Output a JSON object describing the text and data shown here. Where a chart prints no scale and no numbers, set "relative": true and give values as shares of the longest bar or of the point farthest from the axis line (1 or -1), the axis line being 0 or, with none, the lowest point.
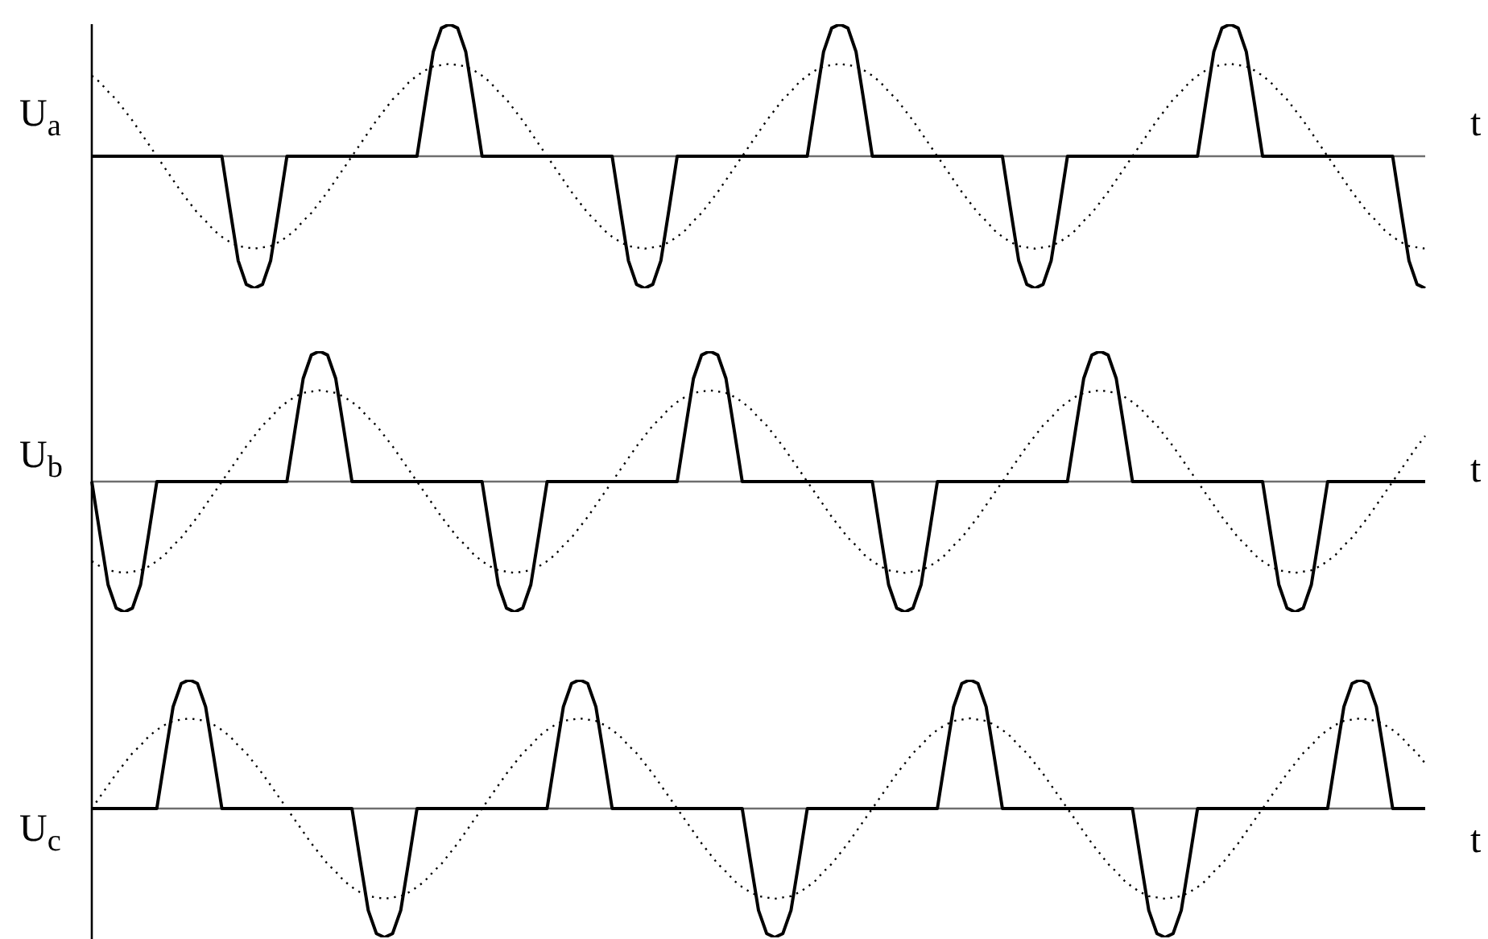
{
  "chart_data": [
    {
      "type": "line",
      "relative": true,
      "ylabel": "U$_{a}$",
      "xlabel": "t",
      "categories": [
        null,
        null,
        null,
        null,
        null,
        null,
        null,
        null,
        null,
        null,
        null,
        null,
        null,
        null,
        null,
        null,
        null,
        null,
        null,
        null,
        null,
        null,
        null,
        null,
        null,
        null,
        null,
        null,
        null,
        null,
        null,
        null,
        null,
        null,
        null,
        null,
        null,
        null,
        null,
        null,
        null,
        null,
        null,
        null,
        null,
        null,
        null,
        null,
        null,
        null,
        null,
        null,
        null,
        null,
        null,
        null,
        null,
        null,
        null,
        null,
        null,
        null,
        null,
        null,
        null,
        null,
        null,
        null,
        null,
        null,
        null,
        null,
        null,
        null,
        null,
        null,
        null,
        null,
        null,
        null,
        null,
        null,
        null,
        null,
        null,
        null,
        null,
        null,
        null,
        null,
        null,
        null,
        null,
        null,
        null,
        null,
        null,
        null,
        null,
        null,
        null,
        null,
        null,
        null,
        null,
        null,
        null,
        null,
        null,
        null,
        null,
        null,
        null,
        null,
        null,
        null,
        null,
        null,
        null,
        null,
        null,
        null,
        null,
        null,
        null,
        null,
        null,
        null,
        null,
        null,
        null,
        null,
        null,
        null,
        null,
        null,
        null,
        null,
        null,
        null,
        null,
        null,
        null,
        null,
        null,
        null,
        null,
        null,
        null,
        null,
        null,
        null,
        null,
        null,
        null,
        null,
        null,
        null,
        null,
        null,
        null,
        null,
        null,
        null,
        null
      ],
      "series": [
        {
          "color": "#000000",
          "line_style": "dotted",
          "values": [
            0.61,
            0.56,
            0.49,
            0.43,
            0.35,
            0.27,
            0.18,
            0.09,
            0,
            -0.09,
            -0.18,
            -0.27,
            -0.35,
            -0.43,
            -0.49,
            -0.56,
            -0.61,
            -0.65,
            -0.68,
            -0.69,
            -0.7,
            -0.69,
            -0.68,
            -0.65,
            -0.61,
            -0.56,
            -0.49,
            -0.43,
            -0.35,
            -0.27,
            -0.18,
            -0.09,
            0,
            0.09,
            0.18,
            0.27,
            0.35,
            0.43,
            0.49,
            0.56,
            0.61,
            0.65,
            0.68,
            0.69,
            0.7,
            0.69,
            0.68,
            0.65,
            0.61,
            0.56,
            0.49,
            0.43,
            0.35,
            0.27,
            0.18,
            0.09,
            0,
            -0.09,
            -0.18,
            -0.27,
            -0.35,
            -0.43,
            -0.49,
            -0.56,
            -0.61,
            -0.65,
            -0.68,
            -0.69,
            -0.7,
            -0.69,
            -0.68,
            -0.65,
            -0.61,
            -0.56,
            -0.49,
            -0.43,
            -0.35,
            -0.27,
            -0.18,
            -0.09,
            0,
            0.09,
            0.18,
            0.27,
            0.35,
            0.43,
            0.49,
            0.56,
            0.61,
            0.65,
            0.68,
            0.69,
            0.7,
            0.69,
            0.68,
            0.65,
            0.61,
            0.56,
            0.49,
            0.43,
            0.35,
            0.27,
            0.18,
            0.09,
            0,
            -0.09,
            -0.18,
            -0.27,
            -0.35,
            -0.43,
            -0.49,
            -0.56,
            -0.61,
            -0.65,
            -0.68,
            -0.69,
            -0.7,
            -0.69,
            -0.68,
            -0.65,
            -0.61,
            -0.56,
            -0.49,
            -0.43,
            -0.35,
            -0.27,
            -0.18,
            -0.09,
            0,
            0.09,
            0.18,
            0.27,
            0.35,
            0.43,
            0.49,
            0.56,
            0.61,
            0.65,
            0.68,
            0.69,
            0.7,
            0.69,
            0.68,
            0.65,
            0.61,
            0.56,
            0.49,
            0.43,
            0.35,
            0.27,
            0.18,
            0.09,
            0,
            -0.09,
            -0.18,
            -0.27,
            -0.35,
            -0.43,
            -0.49,
            -0.56,
            -0.61,
            -0.65,
            -0.68,
            -0.69,
            -0.7
          ]
        },
        {
          "color": "#000000",
          "line_style": "solid",
          "values": [
            0,
            0,
            0,
            0,
            0,
            0,
            0,
            0,
            0,
            0,
            0,
            0,
            0,
            0,
            0,
            0,
            0,
            -0.4,
            -0.79,
            -0.97,
            -1,
            -0.97,
            -0.79,
            -0.4,
            0,
            0,
            0,
            0,
            0,
            0,
            0,
            0,
            0,
            0,
            0,
            0,
            0,
            0,
            0,
            0,
            0,
            0.4,
            0.79,
            0.97,
            1,
            0.97,
            0.79,
            0.4,
            0,
            0,
            0,
            0,
            0,
            0,
            0,
            0,
            0,
            0,
            0,
            0,
            0,
            0,
            0,
            0,
            0,
            -0.4,
            -0.79,
            -0.97,
            -1,
            -0.97,
            -0.79,
            -0.4,
            0,
            0,
            0,
            0,
            0,
            0,
            0,
            0,
            0,
            0,
            0,
            0,
            0,
            0,
            0,
            0,
            0,
            0.4,
            0.79,
            0.97,
            1,
            0.97,
            0.79,
            0.4,
            0,
            0,
            0,
            0,
            0,
            0,
            0,
            0,
            0,
            0,
            0,
            0,
            0,
            0,
            0,
            0,
            0,
            -0.4,
            -0.79,
            -0.97,
            -1,
            -0.97,
            -0.79,
            -0.4,
            0,
            0,
            0,
            0,
            0,
            0,
            0,
            0,
            0,
            0,
            0,
            0,
            0,
            0,
            0,
            0,
            0,
            0.4,
            0.79,
            0.97,
            1,
            0.97,
            0.79,
            0.4,
            0,
            0,
            0,
            0,
            0,
            0,
            0,
            0,
            0,
            0,
            0,
            0,
            0,
            0,
            0,
            0,
            0,
            -0.4,
            -0.79,
            -0.97,
            -1
          ]
        }
      ]
    },
    {
      "type": "line",
      "relative": true,
      "ylabel": "U$_{b}$",
      "xlabel": "t",
      "categories": [
        null,
        null,
        null,
        null,
        null,
        null,
        null,
        null,
        null,
        null,
        null,
        null,
        null,
        null,
        null,
        null,
        null,
        null,
        null,
        null,
        null,
        null,
        null,
        null,
        null,
        null,
        null,
        null,
        null,
        null,
        null,
        null,
        null,
        null,
        null,
        null,
        null,
        null,
        null,
        null,
        null,
        null,
        null,
        null,
        null,
        null,
        null,
        null,
        null,
        null,
        null,
        null,
        null,
        null,
        null,
        null,
        null,
        null,
        null,
        null,
        null,
        null,
        null,
        null,
        null,
        null,
        null,
        null,
        null,
        null,
        null,
        null,
        null,
        null,
        null,
        null,
        null,
        null,
        null,
        null,
        null,
        null,
        null,
        null,
        null,
        null,
        null,
        null,
        null,
        null,
        null,
        null,
        null,
        null,
        null,
        null,
        null,
        null,
        null,
        null,
        null,
        null,
        null,
        null,
        null,
        null,
        null,
        null,
        null,
        null,
        null,
        null,
        null,
        null,
        null,
        null,
        null,
        null,
        null,
        null,
        null,
        null,
        null,
        null,
        null,
        null,
        null,
        null,
        null,
        null,
        null,
        null,
        null,
        null,
        null,
        null,
        null,
        null,
        null,
        null,
        null,
        null,
        null,
        null,
        null,
        null,
        null,
        null,
        null,
        null,
        null,
        null,
        null,
        null,
        null,
        null,
        null,
        null,
        null,
        null,
        null,
        null,
        null,
        null,
        null
      ],
      "series": [
        {
          "color": "#000000",
          "line_style": "dotted",
          "values": [
            -0.61,
            -0.65,
            -0.68,
            -0.69,
            -0.7,
            -0.69,
            -0.68,
            -0.65,
            -0.61,
            -0.56,
            -0.49,
            -0.43,
            -0.35,
            -0.27,
            -0.18,
            -0.09,
            0,
            0.09,
            0.18,
            0.27,
            0.35,
            0.43,
            0.49,
            0.56,
            0.61,
            0.65,
            0.68,
            0.69,
            0.7,
            0.69,
            0.68,
            0.65,
            0.61,
            0.56,
            0.49,
            0.43,
            0.35,
            0.27,
            0.18,
            0.09,
            0,
            -0.09,
            -0.18,
            -0.27,
            -0.35,
            -0.43,
            -0.49,
            -0.56,
            -0.61,
            -0.65,
            -0.68,
            -0.69,
            -0.7,
            -0.69,
            -0.68,
            -0.65,
            -0.61,
            -0.56,
            -0.49,
            -0.43,
            -0.35,
            -0.27,
            -0.18,
            -0.09,
            0,
            0.09,
            0.18,
            0.27,
            0.35,
            0.43,
            0.49,
            0.56,
            0.61,
            0.65,
            0.68,
            0.69,
            0.7,
            0.69,
            0.68,
            0.65,
            0.61,
            0.56,
            0.49,
            0.43,
            0.35,
            0.27,
            0.18,
            0.09,
            0,
            -0.09,
            -0.18,
            -0.27,
            -0.35,
            -0.43,
            -0.49,
            -0.56,
            -0.61,
            -0.65,
            -0.68,
            -0.69,
            -0.7,
            -0.69,
            -0.68,
            -0.65,
            -0.61,
            -0.56,
            -0.49,
            -0.43,
            -0.35,
            -0.27,
            -0.18,
            -0.09,
            0,
            0.09,
            0.18,
            0.27,
            0.35,
            0.43,
            0.49,
            0.56,
            0.61,
            0.65,
            0.68,
            0.69,
            0.7,
            0.69,
            0.68,
            0.65,
            0.61,
            0.56,
            0.49,
            0.43,
            0.35,
            0.27,
            0.18,
            0.09,
            0,
            -0.09,
            -0.18,
            -0.27,
            -0.35,
            -0.43,
            -0.49,
            -0.56,
            -0.61,
            -0.65,
            -0.68,
            -0.69,
            -0.7,
            -0.69,
            -0.68,
            -0.65,
            -0.61,
            -0.56,
            -0.49,
            -0.43,
            -0.35,
            -0.27,
            -0.18,
            -0.09,
            0,
            0.09,
            0.18,
            0.27,
            0.35
          ]
        },
        {
          "color": "#000000",
          "line_style": "solid",
          "values": [
            0,
            -0.4,
            -0.79,
            -0.97,
            -1,
            -0.97,
            -0.79,
            -0.4,
            0,
            0,
            0,
            0,
            0,
            0,
            0,
            0,
            0,
            0,
            0,
            0,
            0,
            0,
            0,
            0,
            0,
            0.4,
            0.79,
            0.97,
            1,
            0.97,
            0.79,
            0.4,
            0,
            0,
            0,
            0,
            0,
            0,
            0,
            0,
            0,
            0,
            0,
            0,
            0,
            0,
            0,
            0,
            0,
            -0.4,
            -0.79,
            -0.97,
            -1,
            -0.97,
            -0.79,
            -0.4,
            0,
            0,
            0,
            0,
            0,
            0,
            0,
            0,
            0,
            0,
            0,
            0,
            0,
            0,
            0,
            0,
            0,
            0.4,
            0.79,
            0.97,
            1,
            0.97,
            0.79,
            0.4,
            0,
            0,
            0,
            0,
            0,
            0,
            0,
            0,
            0,
            0,
            0,
            0,
            0,
            0,
            0,
            0,
            0,
            -0.4,
            -0.79,
            -0.97,
            -1,
            -0.97,
            -0.79,
            -0.4,
            0,
            0,
            0,
            0,
            0,
            0,
            0,
            0,
            0,
            0,
            0,
            0,
            0,
            0,
            0,
            0,
            0,
            0.4,
            0.79,
            0.97,
            1,
            0.97,
            0.79,
            0.4,
            0,
            0,
            0,
            0,
            0,
            0,
            0,
            0,
            0,
            0,
            0,
            0,
            0,
            0,
            0,
            0,
            0,
            -0.4,
            -0.79,
            -0.97,
            -1,
            -0.97,
            -0.79,
            -0.4,
            0,
            0,
            0,
            0,
            0,
            0,
            0,
            0,
            0,
            0,
            0,
            0,
            0
          ]
        }
      ]
    },
    {
      "type": "line",
      "relative": true,
      "ylabel": "U$_{c}$",
      "xlabel": "t",
      "categories": [
        null,
        null,
        null,
        null,
        null,
        null,
        null,
        null,
        null,
        null,
        null,
        null,
        null,
        null,
        null,
        null,
        null,
        null,
        null,
        null,
        null,
        null,
        null,
        null,
        null,
        null,
        null,
        null,
        null,
        null,
        null,
        null,
        null,
        null,
        null,
        null,
        null,
        null,
        null,
        null,
        null,
        null,
        null,
        null,
        null,
        null,
        null,
        null,
        null,
        null,
        null,
        null,
        null,
        null,
        null,
        null,
        null,
        null,
        null,
        null,
        null,
        null,
        null,
        null,
        null,
        null,
        null,
        null,
        null,
        null,
        null,
        null,
        null,
        null,
        null,
        null,
        null,
        null,
        null,
        null,
        null,
        null,
        null,
        null,
        null,
        null,
        null,
        null,
        null,
        null,
        null,
        null,
        null,
        null,
        null,
        null,
        null,
        null,
        null,
        null,
        null,
        null,
        null,
        null,
        null,
        null,
        null,
        null,
        null,
        null,
        null,
        null,
        null,
        null,
        null,
        null,
        null,
        null,
        null,
        null,
        null,
        null,
        null,
        null,
        null,
        null,
        null,
        null,
        null,
        null,
        null,
        null,
        null,
        null,
        null,
        null,
        null,
        null,
        null,
        null,
        null,
        null,
        null,
        null,
        null,
        null,
        null,
        null,
        null,
        null,
        null,
        null,
        null,
        null,
        null,
        null,
        null,
        null,
        null,
        null,
        null,
        null,
        null,
        null,
        null
      ],
      "series": [
        {
          "color": "#000000",
          "line_style": "dotted",
          "values": [
            0,
            0.09,
            0.18,
            0.27,
            0.35,
            0.43,
            0.49,
            0.56,
            0.61,
            0.65,
            0.68,
            0.69,
            0.7,
            0.69,
            0.68,
            0.65,
            0.61,
            0.56,
            0.49,
            0.43,
            0.35,
            0.27,
            0.18,
            0.09,
            0,
            -0.09,
            -0.18,
            -0.27,
            -0.35,
            -0.43,
            -0.49,
            -0.56,
            -0.61,
            -0.65,
            -0.68,
            -0.69,
            -0.7,
            -0.69,
            -0.68,
            -0.65,
            -0.61,
            -0.56,
            -0.49,
            -0.43,
            -0.35,
            -0.27,
            -0.18,
            -0.09,
            0,
            0.09,
            0.18,
            0.27,
            0.35,
            0.43,
            0.49,
            0.56,
            0.61,
            0.65,
            0.68,
            0.69,
            0.7,
            0.69,
            0.68,
            0.65,
            0.61,
            0.56,
            0.49,
            0.43,
            0.35,
            0.27,
            0.18,
            0.09,
            0,
            -0.09,
            -0.18,
            -0.27,
            -0.35,
            -0.43,
            -0.49,
            -0.56,
            -0.61,
            -0.65,
            -0.68,
            -0.69,
            -0.7,
            -0.69,
            -0.68,
            -0.65,
            -0.61,
            -0.56,
            -0.49,
            -0.43,
            -0.35,
            -0.27,
            -0.18,
            -0.09,
            0,
            0.09,
            0.18,
            0.27,
            0.35,
            0.43,
            0.49,
            0.56,
            0.61,
            0.65,
            0.68,
            0.69,
            0.7,
            0.69,
            0.68,
            0.65,
            0.61,
            0.56,
            0.49,
            0.43,
            0.35,
            0.27,
            0.18,
            0.09,
            0,
            -0.09,
            -0.18,
            -0.27,
            -0.35,
            -0.43,
            -0.49,
            -0.56,
            -0.61,
            -0.65,
            -0.68,
            -0.69,
            -0.7,
            -0.69,
            -0.68,
            -0.65,
            -0.61,
            -0.56,
            -0.49,
            -0.43,
            -0.35,
            -0.27,
            -0.18,
            -0.09,
            0,
            0.09,
            0.18,
            0.27,
            0.35,
            0.43,
            0.49,
            0.56,
            0.61,
            0.65,
            0.68,
            0.69,
            0.7,
            0.69,
            0.68,
            0.65,
            0.61,
            0.56,
            0.49,
            0.43,
            0.35
          ]
        },
        {
          "color": "#000000",
          "line_style": "solid",
          "values": [
            0,
            0,
            0,
            0,
            0,
            0,
            0,
            0,
            0,
            0.4,
            0.79,
            0.97,
            1,
            0.97,
            0.79,
            0.4,
            0,
            0,
            0,
            0,
            0,
            0,
            0,
            0,
            0,
            0,
            0,
            0,
            0,
            0,
            0,
            0,
            0,
            -0.4,
            -0.79,
            -0.97,
            -1,
            -0.97,
            -0.79,
            -0.4,
            0,
            0,
            0,
            0,
            0,
            0,
            0,
            0,
            0,
            0,
            0,
            0,
            0,
            0,
            0,
            0,
            0,
            0.4,
            0.79,
            0.97,
            1,
            0.97,
            0.79,
            0.4,
            0,
            0,
            0,
            0,
            0,
            0,
            0,
            0,
            0,
            0,
            0,
            0,
            0,
            0,
            0,
            0,
            0,
            -0.4,
            -0.79,
            -0.97,
            -1,
            -0.97,
            -0.79,
            -0.4,
            0,
            0,
            0,
            0,
            0,
            0,
            0,
            0,
            0,
            0,
            0,
            0,
            0,
            0,
            0,
            0,
            0,
            0.4,
            0.79,
            0.97,
            1,
            0.97,
            0.79,
            0.4,
            0,
            0,
            0,
            0,
            0,
            0,
            0,
            0,
            0,
            0,
            0,
            0,
            0,
            0,
            0,
            0,
            0,
            -0.4,
            -0.79,
            -0.97,
            -1,
            -0.97,
            -0.79,
            -0.4,
            0,
            0,
            0,
            0,
            0,
            0,
            0,
            0,
            0,
            0,
            0,
            0,
            0,
            0,
            0,
            0,
            0,
            0.4,
            0.79,
            0.97,
            1,
            0.97,
            0.79,
            0.4,
            0,
            0,
            0,
            0,
            0
          ]
        }
      ]
    }
  ]
}
